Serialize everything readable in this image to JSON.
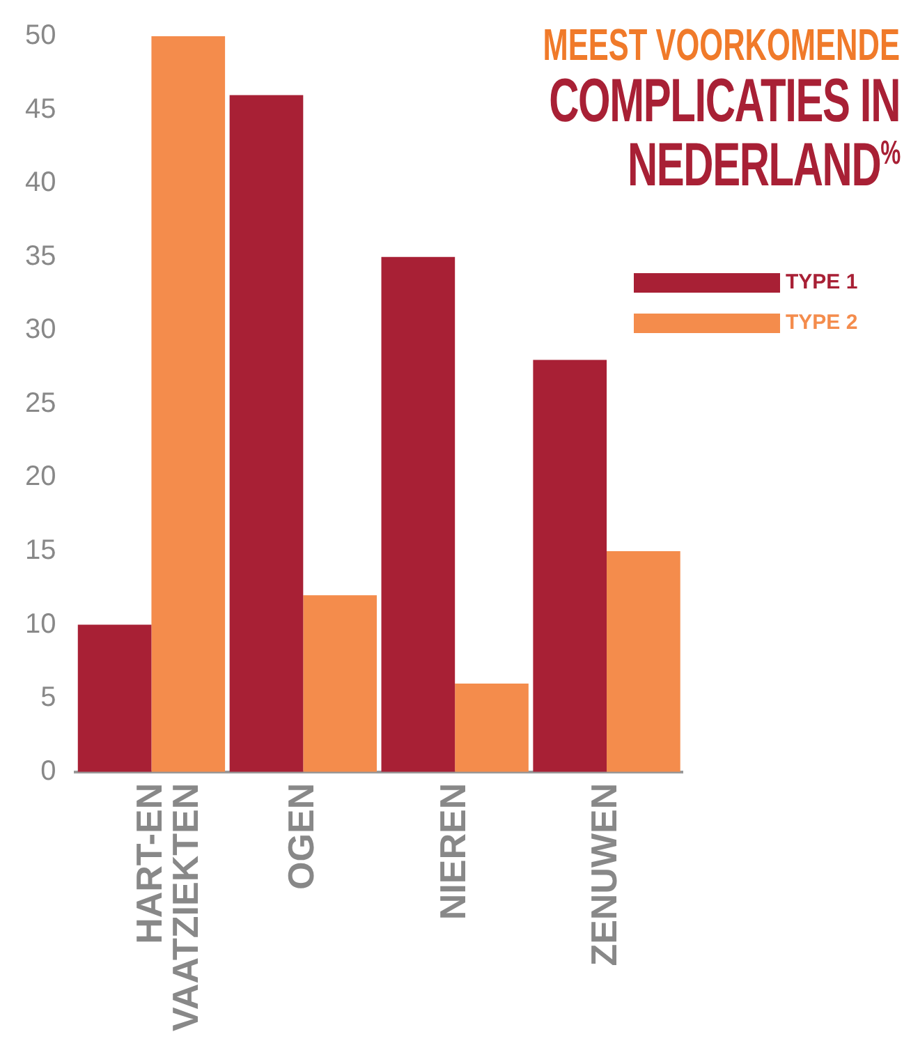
{
  "chart_data": {
    "type": "bar",
    "title": "COMPLICATIES IN NEDERLAND$^{%}$",
    "subtitle": "MEEST VOORKOMENDE",
    "categories": [
      "HART-EN VAATZIEKTEN",
      "OGEN",
      "NIEREN",
      "ZENUWEN"
    ],
    "series": [
      {
        "name": "TYPE 1",
        "color": "#a82035",
        "values": [
          10,
          46,
          35,
          28
        ]
      },
      {
        "name": "TYPE 2",
        "color": "#f48c4c",
        "values": [
          50,
          12,
          6,
          15
        ]
      }
    ],
    "ylim": [
      0,
      50
    ],
    "yticks": [
      0,
      5,
      10,
      15,
      20,
      25,
      30,
      35,
      40,
      45,
      50
    ],
    "grid": false,
    "legend": "top right"
  }
}
